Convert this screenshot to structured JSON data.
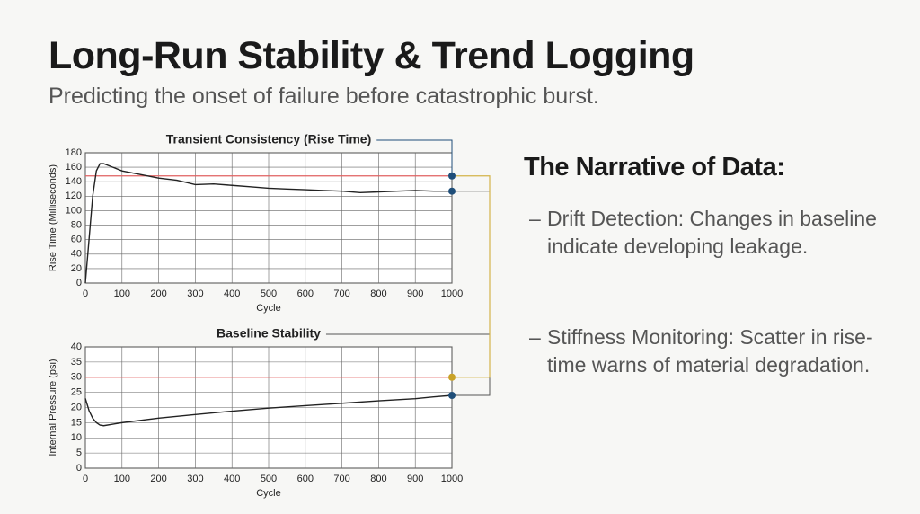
{
  "title": "Long-Run Stability & Trend Logging",
  "subtitle": "Predicting the onset of failure before catastrophic burst.",
  "narrative": {
    "heading": "The Narrative of Data:",
    "bullets": [
      "Drift Detection: Changes in baseline indicate developing leakage.",
      "Stiffness Monitoring: Scatter in rise-time warns of material degradation."
    ]
  },
  "chart_data": [
    {
      "type": "line",
      "title": "Transient Consistency (Rise Time)",
      "xlabel": "Cycle",
      "ylabel": "Rise Time (Milliseconds)",
      "xlim": [
        0,
        1000
      ],
      "ylim": [
        0,
        180
      ],
      "xticks": [
        0,
        100,
        200,
        300,
        400,
        500,
        600,
        700,
        800,
        900,
        1000
      ],
      "yticks": [
        0,
        20,
        40,
        60,
        80,
        100,
        120,
        140,
        160,
        180
      ],
      "grid": true,
      "x": [
        0,
        10,
        20,
        30,
        40,
        50,
        75,
        100,
        150,
        200,
        250,
        300,
        350,
        400,
        450,
        500,
        550,
        600,
        650,
        700,
        750,
        800,
        850,
        900,
        950,
        1000
      ],
      "series": [
        {
          "color": "#222222",
          "end_marker_color": "#1f4e79",
          "values": [
            0,
            60,
            120,
            155,
            165,
            165,
            160,
            155,
            150,
            145,
            142,
            136,
            137,
            135,
            133,
            131,
            130,
            129,
            128,
            127,
            125,
            126,
            127,
            128,
            127,
            127
          ]
        }
      ],
      "reference_line": {
        "value": 148,
        "color": "#e06060",
        "marker_color": "#1f4e79"
      }
    },
    {
      "type": "line",
      "title": "Baseline Stability",
      "xlabel": "Cycle",
      "ylabel": "Internal Pressure (psi)",
      "xlim": [
        0,
        1000
      ],
      "ylim": [
        0,
        40
      ],
      "xticks": [
        0,
        100,
        200,
        300,
        400,
        500,
        600,
        700,
        800,
        900,
        1000
      ],
      "yticks": [
        0,
        5,
        10,
        15,
        20,
        25,
        30,
        35,
        40
      ],
      "grid": true,
      "x": [
        0,
        10,
        20,
        30,
        40,
        50,
        75,
        100,
        200,
        300,
        400,
        500,
        600,
        700,
        800,
        900,
        950,
        1000
      ],
      "series": [
        {
          "color": "#222222",
          "end_marker_color": "#1f4e79",
          "values": [
            23,
            19,
            16.5,
            15,
            14.2,
            14,
            14.5,
            15,
            16.5,
            17.7,
            18.8,
            19.8,
            20.6,
            21.4,
            22.2,
            22.9,
            23.5,
            24
          ]
        }
      ],
      "reference_line": {
        "value": 30,
        "color": "#e06060",
        "marker_color": "#c9a227"
      }
    }
  ]
}
